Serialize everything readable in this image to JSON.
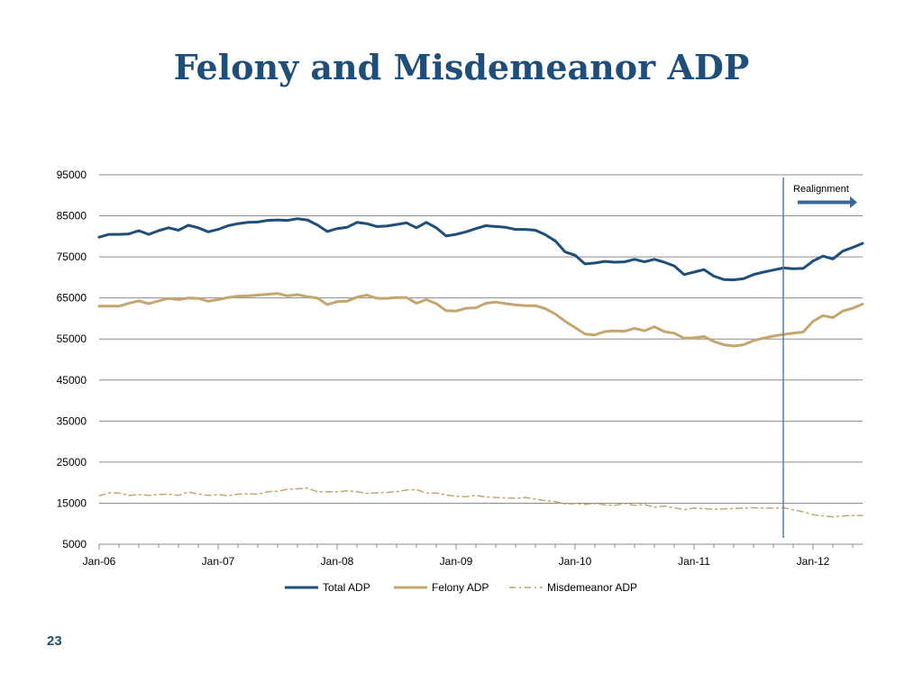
{
  "slide": {
    "title": "Felony and Misdemeanor ADP",
    "page_number": "23"
  },
  "chart_data": {
    "type": "line",
    "title": "",
    "xlabel": "",
    "ylabel": "",
    "ylim": [
      5000,
      95000
    ],
    "yticks": [
      5000,
      15000,
      25000,
      35000,
      45000,
      55000,
      65000,
      75000,
      85000,
      95000
    ],
    "ytick_labels": [
      "5000",
      "15000",
      "25000",
      "35000",
      "45000",
      "55000",
      "65000",
      "75000",
      "85000",
      "95000"
    ],
    "x_start": "2006-01",
    "x_end": "2012-06",
    "xtick_labels": [
      "Jan-06",
      "Jan-07",
      "Jan-08",
      "Jan-09",
      "Jan-10",
      "Jan-11",
      "Jan-12"
    ],
    "grid": "horizontal",
    "legend_position": "bottom",
    "annotation": {
      "text": "Realignment",
      "at": "2011-10"
    },
    "series": [
      {
        "name": "Total ADP",
        "color": "#1f4e79",
        "style": "solid",
        "values": [
          79800,
          80500,
          80500,
          80600,
          81400,
          80500,
          81400,
          82100,
          81500,
          82700,
          82100,
          81100,
          81700,
          82600,
          83100,
          83400,
          83500,
          83900,
          84000,
          83900,
          84300,
          84000,
          82800,
          81200,
          81900,
          82200,
          83400,
          83100,
          82400,
          82500,
          82900,
          83300,
          82100,
          83400,
          82100,
          80100,
          80500,
          81100,
          81900,
          82600,
          82400,
          82200,
          81700,
          81700,
          81500,
          80400,
          78900,
          76200,
          75400,
          73300,
          73500,
          73900,
          73700,
          73800,
          74400,
          73800,
          74400,
          73700,
          72800,
          70700,
          71300,
          71900,
          70300,
          69500,
          69400,
          69700,
          70700,
          71300,
          71800,
          72300,
          72100,
          72200,
          74000,
          75200,
          74500,
          76400,
          77300,
          78300
        ]
      },
      {
        "name": "Felony ADP",
        "color": "#c4a66e",
        "style": "solid",
        "values": [
          63000,
          63000,
          63000,
          63700,
          64300,
          63600,
          64300,
          64900,
          64600,
          65000,
          64900,
          64200,
          64600,
          65100,
          65400,
          65500,
          65700,
          65900,
          66100,
          65500,
          65800,
          65300,
          65000,
          63400,
          64100,
          64200,
          65200,
          65700,
          64900,
          64900,
          65100,
          65100,
          63700,
          64600,
          63600,
          61900,
          61800,
          62500,
          62600,
          63700,
          64000,
          63600,
          63300,
          63100,
          63100,
          62400,
          61100,
          59300,
          57800,
          56200,
          56000,
          56800,
          57000,
          56900,
          57600,
          57000,
          58000,
          56800,
          56400,
          55200,
          55300,
          55600,
          54400,
          53600,
          53300,
          53600,
          54600,
          55200,
          55700,
          56100,
          56400,
          56700,
          59300,
          60700,
          60200,
          61800,
          62500,
          63500
        ]
      },
      {
        "name": "Misdemeanor ADP",
        "color": "#c4a66e",
        "style": "dash-dot",
        "values": [
          16800,
          17500,
          17500,
          16900,
          17100,
          16900,
          17100,
          17200,
          16900,
          17700,
          17200,
          16900,
          17100,
          16800,
          17200,
          17300,
          17200,
          17800,
          17900,
          18400,
          18500,
          18700,
          17800,
          17800,
          17800,
          18000,
          17800,
          17400,
          17500,
          17600,
          17800,
          18200,
          18300,
          17500,
          17500,
          17000,
          16700,
          16600,
          16900,
          16500,
          16400,
          16300,
          16200,
          16400,
          16000,
          15600,
          15400,
          14800,
          14900,
          14700,
          14900,
          14600,
          14500,
          14900,
          14500,
          14700,
          14000,
          14300,
          13900,
          13400,
          13800,
          13700,
          13500,
          13600,
          13700,
          13800,
          13900,
          13800,
          13800,
          13900,
          13400,
          12900,
          12200,
          11900,
          11700,
          11900,
          12000,
          12000
        ]
      }
    ]
  }
}
